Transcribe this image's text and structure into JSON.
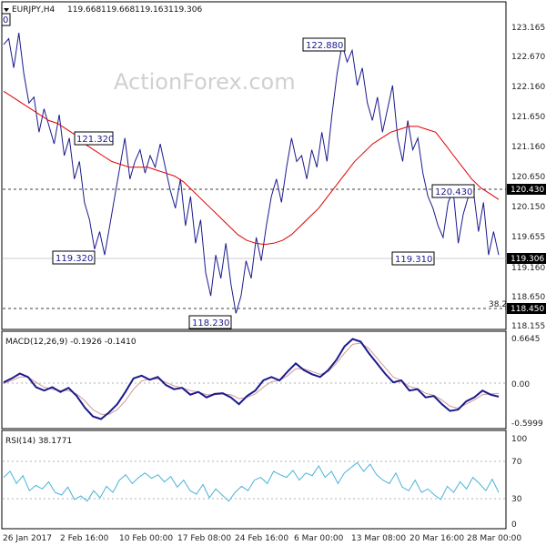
{
  "header": {
    "symbol": "EURJPY,H4",
    "open": "119.668",
    "high": "119.668",
    "low": "119.163",
    "close": "119.306",
    "watermark": "ActionForex.com"
  },
  "colors": {
    "price": "#1a1a8c",
    "ma": "#e00000",
    "macd": "#1a1a8c",
    "signal": "#d09a9a",
    "rsi": "#49b2d8",
    "price_box": "#000000"
  },
  "chart_data": [
    {
      "type": "line",
      "name": "price",
      "ylim": [
        118.12,
        123.35
      ],
      "y_ticks": [
        "123.165",
        "122.670",
        "122.160",
        "121.650",
        "121.160",
        "120.650",
        "120.150",
        "119.655",
        "119.160",
        "118.650",
        "118.155"
      ],
      "x_ticks": [
        "26 Jan 2017",
        "2 Feb 16:00",
        "10 Feb 00:00",
        "17 Feb 08:00",
        "24 Feb 16:00",
        "6 Mar 00:00",
        "13 Mar 08:00",
        "20 Mar 16:00",
        "28 Mar 00:00"
      ],
      "series": [
        {
          "name": "price",
          "values": [
            122.9,
            123.0,
            122.5,
            123.1,
            122.4,
            121.9,
            122.0,
            121.4,
            121.8,
            121.5,
            121.2,
            121.7,
            121.0,
            121.3,
            120.6,
            120.9,
            120.2,
            119.9,
            119.4,
            119.7,
            119.3,
            119.8,
            120.3,
            120.8,
            121.3,
            120.6,
            120.9,
            121.1,
            120.7,
            121.0,
            120.8,
            121.2,
            120.8,
            120.4,
            120.1,
            120.6,
            119.8,
            120.3,
            119.5,
            119.9,
            119.0,
            118.6,
            119.3,
            118.9,
            119.5,
            118.8,
            118.3,
            118.6,
            119.2,
            118.9,
            119.6,
            119.2,
            119.8,
            120.3,
            120.6,
            120.2,
            120.8,
            121.3,
            120.9,
            121.0,
            120.6,
            121.1,
            120.8,
            121.4,
            120.9,
            121.7,
            122.4,
            122.9,
            122.6,
            122.8,
            122.2,
            122.5,
            121.9,
            121.6,
            122.0,
            121.4,
            121.8,
            122.2,
            121.3,
            120.9,
            121.6,
            121.1,
            121.3,
            120.7,
            120.3,
            120.1,
            119.8,
            119.6,
            120.2,
            120.4,
            119.5,
            120.0,
            120.3,
            120.4,
            119.7,
            120.2,
            119.3,
            119.7,
            119.3
          ]
        },
        {
          "name": "ma",
          "values": [
            122.1,
            122.0,
            121.9,
            121.8,
            121.7,
            121.6,
            121.55,
            121.45,
            121.35,
            121.2,
            121.1,
            121.0,
            120.9,
            120.85,
            120.8,
            120.8,
            120.8,
            120.75,
            120.7,
            120.65,
            120.55,
            120.4,
            120.25,
            120.1,
            119.95,
            119.8,
            119.65,
            119.55,
            119.5,
            119.48,
            119.5,
            119.55,
            119.65,
            119.8,
            119.95,
            120.1,
            120.3,
            120.5,
            120.7,
            120.9,
            121.05,
            121.2,
            121.3,
            121.4,
            121.45,
            121.5,
            121.5,
            121.45,
            121.4,
            121.2,
            121.0,
            120.8,
            120.6,
            120.45,
            120.35,
            120.25
          ]
        }
      ],
      "annotations": [
        "122.880",
        "121.320",
        "119.320",
        "118.230",
        "120.430",
        "119.310",
        "38.2"
      ],
      "price_labels": {
        "current": "119.306",
        "level_a": "120.430",
        "level_b": "118.450"
      }
    },
    {
      "type": "line",
      "name": "MACD",
      "title": "MACD(12,26,9) -0.1926 -0.1410",
      "ylim": [
        -0.62,
        0.72
      ],
      "y_ticks": [
        "0.6645",
        "0.00",
        "-0.5999"
      ],
      "series": [
        {
          "name": "macd",
          "values": [
            0.02,
            0.08,
            0.15,
            0.1,
            -0.05,
            -0.1,
            -0.05,
            -0.12,
            -0.06,
            -0.18,
            -0.35,
            -0.48,
            -0.52,
            -0.42,
            -0.3,
            -0.12,
            0.08,
            0.12,
            0.06,
            0.1,
            -0.02,
            -0.08,
            -0.06,
            -0.16,
            -0.12,
            -0.2,
            -0.15,
            -0.14,
            -0.2,
            -0.3,
            -0.18,
            -0.1,
            0.05,
            0.1,
            0.05,
            0.18,
            0.3,
            0.2,
            0.14,
            0.1,
            0.2,
            0.35,
            0.55,
            0.66,
            0.62,
            0.45,
            0.3,
            0.15,
            0.02,
            0.05,
            -0.1,
            -0.08,
            -0.2,
            -0.18,
            -0.3,
            -0.4,
            -0.38,
            -0.26,
            -0.2,
            -0.1,
            -0.16,
            -0.19
          ]
        },
        {
          "name": "signal",
          "values": [
            0.0,
            0.05,
            0.1,
            0.1,
            0.02,
            -0.05,
            -0.08,
            -0.1,
            -0.1,
            -0.15,
            -0.25,
            -0.38,
            -0.45,
            -0.45,
            -0.38,
            -0.25,
            -0.08,
            0.04,
            0.07,
            0.07,
            0.02,
            -0.03,
            -0.06,
            -0.1,
            -0.12,
            -0.16,
            -0.16,
            -0.15,
            -0.16,
            -0.22,
            -0.2,
            -0.15,
            -0.05,
            0.03,
            0.05,
            0.12,
            0.22,
            0.22,
            0.18,
            0.14,
            0.18,
            0.3,
            0.45,
            0.58,
            0.6,
            0.52,
            0.38,
            0.24,
            0.1,
            0.05,
            -0.04,
            -0.07,
            -0.14,
            -0.17,
            -0.24,
            -0.33,
            -0.36,
            -0.3,
            -0.24,
            -0.16,
            -0.15,
            -0.14
          ]
        }
      ]
    },
    {
      "type": "line",
      "name": "RSI",
      "title": "RSI(14) 38.1771",
      "ylim": [
        0,
        100
      ],
      "y_ticks": [
        "100",
        "70",
        "30",
        "0"
      ],
      "series": [
        {
          "name": "rsi",
          "values": [
            55,
            62,
            48,
            57,
            40,
            46,
            42,
            50,
            38,
            35,
            44,
            30,
            34,
            28,
            40,
            32,
            45,
            38,
            52,
            58,
            48,
            55,
            60,
            54,
            58,
            50,
            56,
            44,
            52,
            40,
            36,
            47,
            32,
            42,
            35,
            28,
            38,
            45,
            40,
            52,
            55,
            48,
            62,
            58,
            55,
            63,
            52,
            60,
            57,
            68,
            55,
            62,
            48,
            60,
            66,
            72,
            62,
            70,
            58,
            52,
            48,
            60,
            44,
            40,
            52,
            38,
            42,
            35,
            30,
            45,
            38,
            50,
            42,
            55,
            48,
            40,
            53,
            38
          ]
        }
      ]
    }
  ]
}
